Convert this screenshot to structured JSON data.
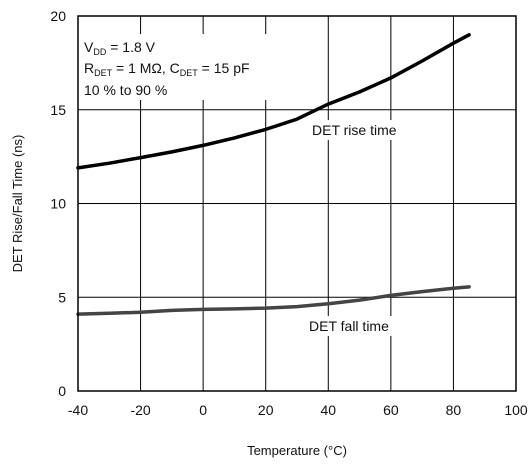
{
  "chart_data": {
    "type": "line",
    "title": "",
    "xlabel": "Temperature (°C)",
    "ylabel": "DET Rise/Fall Time (ns)",
    "xlim": [
      -40,
      100
    ],
    "ylim": [
      0,
      20
    ],
    "x_ticks": [
      -40,
      -20,
      0,
      20,
      40,
      60,
      80,
      100
    ],
    "y_ticks": [
      0,
      5,
      10,
      15,
      20
    ],
    "grid": true,
    "legend": "none",
    "conditions": {
      "vdd_label": "V",
      "vdd_sub": "DD",
      "vdd_value": " = 1.8 V",
      "rdet_label": "R",
      "rdet_sub": "DET",
      "rdet_value": " = 1 MΩ, ",
      "cdet_label": "C",
      "cdet_sub": "DET",
      "cdet_value": " = 15 pF",
      "range": "10 % to 90 %"
    },
    "series": [
      {
        "name": "DET rise time",
        "color": "#000000",
        "x": [
          -40,
          -30,
          -20,
          -10,
          0,
          10,
          20,
          30,
          40,
          50,
          60,
          70,
          80,
          85
        ],
        "y": [
          11.9,
          12.15,
          12.45,
          12.75,
          13.1,
          13.5,
          13.95,
          14.5,
          15.3,
          15.95,
          16.7,
          17.6,
          18.55,
          19.0
        ]
      },
      {
        "name": "DET fall time",
        "color": "#444444",
        "x": [
          -40,
          -30,
          -20,
          -10,
          0,
          10,
          20,
          30,
          40,
          50,
          60,
          70,
          80,
          85
        ],
        "y": [
          4.1,
          4.15,
          4.2,
          4.3,
          4.35,
          4.38,
          4.42,
          4.5,
          4.65,
          4.85,
          5.1,
          5.3,
          5.48,
          5.55
        ]
      }
    ]
  }
}
